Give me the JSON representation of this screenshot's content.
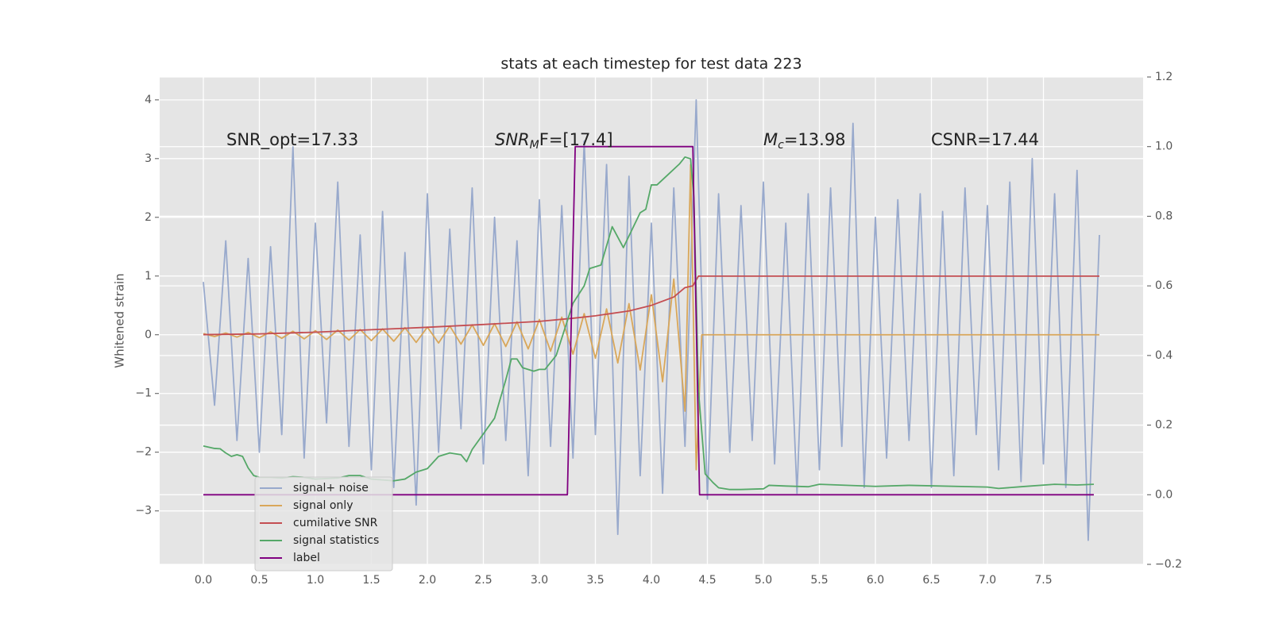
{
  "chart_data": {
    "type": "line",
    "title": "stats at each timestep for test data 223",
    "y_label": "Whitened strain",
    "annotations": [
      {
        "text": "SNR_opt=17.33"
      },
      {
        "base": "SNR",
        "sub": "M",
        "rest": "F=[17.4]"
      },
      {
        "base": "M",
        "sub": "c",
        "rest": "=13.98"
      },
      {
        "text": "CSNR=17.44"
      }
    ],
    "xlim": [
      -0.39,
      8.39
    ],
    "xticks": [
      {
        "value": 0,
        "label": "0.0"
      },
      0.5,
      {
        "value": 1,
        "label": "1.0"
      },
      1.5,
      {
        "value": 2,
        "label": "2.0"
      },
      2.5,
      {
        "value": 3,
        "label": "3.0"
      },
      3.5,
      {
        "value": 4,
        "label": "4.0"
      },
      4.5,
      {
        "value": 5,
        "label": "5.0"
      },
      5.5,
      {
        "value": 6,
        "label": "6.0"
      },
      6.5,
      {
        "value": 7,
        "label": "7.0"
      },
      7.5
    ],
    "ylim": [
      -3.91,
      4.39
    ],
    "yticks": [
      {
        "value": -3,
        "label": "−3"
      },
      {
        "value": -2,
        "label": "−2"
      },
      {
        "value": -1,
        "label": "−1"
      },
      0,
      1,
      2,
      3,
      4
    ],
    "y2lim": [
      -0.2,
      1.2
    ],
    "y2ticks": [
      {
        "value": -0.2,
        "label": "−0.2"
      },
      {
        "value": 0,
        "label": "0.0"
      },
      0.2,
      0.4,
      0.6,
      0.8,
      {
        "value": 1,
        "label": "1.0"
      },
      1.2
    ],
    "grid": true,
    "legend": "lower left",
    "series": [
      {
        "name": "signal+ noise",
        "color": "#98a9cc",
        "x": [
          0,
          0.1,
          0.2,
          0.3,
          0.4,
          0.5,
          0.6,
          0.7,
          0.8,
          0.9,
          1,
          1.1,
          1.2,
          1.3,
          1.4,
          1.5,
          1.6,
          1.7,
          1.8,
          1.9,
          2,
          2.1,
          2.2,
          2.3,
          2.4,
          2.5,
          2.6,
          2.7,
          2.8,
          2.9,
          3,
          3.1,
          3.2,
          3.3,
          3.4,
          3.5,
          3.6,
          3.7,
          3.8,
          3.9,
          4,
          4.1,
          4.2,
          4.3,
          4.4,
          4.5,
          4.6,
          4.7,
          4.8,
          4.9,
          5,
          5.1,
          5.2,
          5.3,
          5.4,
          5.5,
          5.6,
          5.7,
          5.8,
          5.9,
          6,
          6.1,
          6.2,
          6.3,
          6.4,
          6.5,
          6.6,
          6.7,
          6.8,
          6.9,
          7,
          7.1,
          7.2,
          7.3,
          7.4,
          7.5,
          7.6,
          7.7,
          7.8,
          7.9,
          8
        ],
        "values": [
          0.9,
          -1.2,
          1.6,
          -1.8,
          1.3,
          -2.0,
          1.5,
          -1.7,
          3.2,
          -2.1,
          1.9,
          -1.5,
          2.6,
          -1.9,
          1.7,
          -2.3,
          2.1,
          -2.6,
          1.4,
          -2.9,
          2.4,
          -2.0,
          1.8,
          -1.6,
          2.5,
          -2.2,
          2.0,
          -1.8,
          1.6,
          -2.4,
          2.3,
          -1.9,
          2.2,
          -2.1,
          3.3,
          -1.7,
          2.9,
          -3.4,
          2.7,
          -2.4,
          1.9,
          -2.7,
          2.5,
          -1.9,
          4.0,
          -2.8,
          2.4,
          -2.0,
          2.2,
          -1.8,
          2.6,
          -2.2,
          1.9,
          -2.7,
          2.4,
          -2.3,
          2.5,
          -1.9,
          3.6,
          -2.6,
          2.0,
          -2.1,
          2.3,
          -1.8,
          2.4,
          -2.6,
          2.1,
          -2.4,
          2.5,
          -1.7,
          2.2,
          -2.3,
          2.6,
          -2.5,
          3.0,
          -2.2,
          2.4,
          -2.6,
          2.8,
          -3.5,
          1.7
        ]
      },
      {
        "name": "signal only",
        "color": "#d9a75a",
        "x": [
          0,
          0.1,
          0.2,
          0.3,
          0.4,
          0.5,
          0.6,
          0.7,
          0.8,
          0.9,
          1,
          1.1,
          1.2,
          1.3,
          1.4,
          1.5,
          1.6,
          1.7,
          1.8,
          1.9,
          2,
          2.1,
          2.2,
          2.3,
          2.4,
          2.5,
          2.6,
          2.7,
          2.8,
          2.9,
          3,
          3.1,
          3.2,
          3.3,
          3.4,
          3.5,
          3.6,
          3.7,
          3.8,
          3.9,
          4,
          4.1,
          4.2,
          4.3,
          4.35,
          4.4,
          4.45,
          8
        ],
        "values": [
          0.02,
          -0.03,
          0.03,
          -0.04,
          0.04,
          -0.05,
          0.05,
          -0.06,
          0.06,
          -0.07,
          0.07,
          -0.08,
          0.08,
          -0.09,
          0.09,
          -0.1,
          0.1,
          -0.11,
          0.12,
          -0.13,
          0.13,
          -0.14,
          0.15,
          -0.16,
          0.17,
          -0.18,
          0.19,
          -0.2,
          0.22,
          -0.24,
          0.26,
          -0.28,
          0.3,
          -0.33,
          0.36,
          -0.4,
          0.44,
          -0.48,
          0.53,
          -0.6,
          0.68,
          -0.8,
          0.95,
          -1.3,
          2.9,
          -2.3,
          0,
          0
        ]
      },
      {
        "name": "cumilative SNR",
        "color": "#c44e52",
        "axis": "y2",
        "x": [
          0,
          0.5,
          1,
          1.5,
          2,
          2.5,
          3,
          3.3,
          3.5,
          3.8,
          4,
          4.2,
          4.3,
          4.37,
          4.42,
          8
        ],
        "values": [
          0.46,
          0.462,
          0.467,
          0.474,
          0.481,
          0.489,
          0.498,
          0.507,
          0.514,
          0.528,
          0.544,
          0.568,
          0.595,
          0.6,
          0.628,
          0.628
        ]
      },
      {
        "name": "signal statistics",
        "color": "#55a868",
        "axis": "y2",
        "x": [
          0,
          0.1,
          0.15,
          0.2,
          0.25,
          0.3,
          0.35,
          0.4,
          0.45,
          0.5,
          0.6,
          0.7,
          0.8,
          0.9,
          1,
          1.2,
          1.3,
          1.4,
          1.5,
          1.7,
          1.8,
          1.9,
          2,
          2.1,
          2.2,
          2.3,
          2.35,
          2.4,
          2.5,
          2.6,
          2.7,
          2.75,
          2.8,
          2.85,
          2.95,
          3,
          3.05,
          3.15,
          3.25,
          3.3,
          3.4,
          3.45,
          3.55,
          3.65,
          3.75,
          3.9,
          3.95,
          4,
          4.05,
          4.15,
          4.25,
          4.3,
          4.35,
          4.38,
          4.42,
          4.48,
          4.55,
          4.6,
          4.7,
          4.8,
          5,
          5.05,
          5.2,
          5.4,
          5.5,
          6,
          6.3,
          7,
          7.1,
          7.3,
          7.6,
          7.8,
          7.95
        ],
        "values": [
          0.14,
          0.133,
          0.132,
          0.12,
          0.11,
          0.115,
          0.11,
          0.077,
          0.055,
          0.05,
          0.05,
          0.048,
          0.052,
          0.05,
          0.045,
          0.048,
          0.055,
          0.055,
          0.045,
          0.04,
          0.045,
          0.065,
          0.075,
          0.11,
          0.12,
          0.115,
          0.095,
          0.13,
          0.175,
          0.22,
          0.33,
          0.39,
          0.39,
          0.365,
          0.355,
          0.36,
          0.36,
          0.4,
          0.5,
          0.55,
          0.6,
          0.65,
          0.66,
          0.77,
          0.71,
          0.81,
          0.82,
          0.89,
          0.89,
          0.92,
          0.95,
          0.97,
          0.965,
          0.85,
          0.3,
          0.06,
          0.035,
          0.02,
          0.015,
          0.015,
          0.017,
          0.027,
          0.025,
          0.023,
          0.03,
          0.024,
          0.027,
          0.022,
          0.018,
          0.023,
          0.03,
          0.028,
          0.03
        ]
      },
      {
        "name": "label",
        "color": "#800080",
        "axis": "y2",
        "x": [
          0,
          3.25,
          3.32,
          4.37,
          4.43,
          7.95
        ],
        "values": [
          0,
          0,
          1,
          1,
          0,
          0
        ]
      }
    ]
  }
}
